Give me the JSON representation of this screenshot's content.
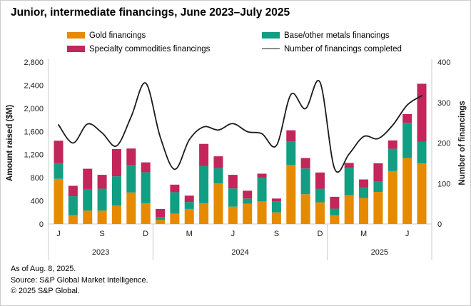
{
  "title": "Junior, intermediate financings, June 2023–July 2025",
  "colors": {
    "gold": "#E68A00",
    "base": "#119E82",
    "specialty": "#C2265A",
    "line": "#1A1A1A",
    "axis_gray": "#CCCCCC"
  },
  "legend": [
    {
      "label": "Gold financings",
      "swatch": "gold"
    },
    {
      "label": "Specialty commodities financings",
      "swatch": "specialty"
    },
    {
      "label": "Base/other metals financings",
      "swatch": "base"
    },
    {
      "label": "Number of financings completed",
      "swatch": "line"
    }
  ],
  "footnotes": {
    "as_of": "As of Aug. 8, 2025.",
    "source": "Source: S&P Global Market Intelligence.",
    "copyright": "© 2025 S&P Global."
  },
  "chart_data": {
    "type": "stacked-bar+line",
    "categories": [
      "Jun 2023",
      "Jul 2023",
      "Aug 2023",
      "Sep 2023",
      "Oct 2023",
      "Nov 2023",
      "Dec 2023",
      "Jan 2024",
      "Feb 2024",
      "Mar 2024",
      "Apr 2024",
      "May 2024",
      "Jun 2024",
      "Jul 2024",
      "Aug 2024",
      "Sep 2024",
      "Oct 2024",
      "Nov 2024",
      "Dec 2024",
      "Jan 2025",
      "Feb 2025",
      "Mar 2025",
      "Apr 2025",
      "May 2025",
      "Jun 2025",
      "Jul 2025"
    ],
    "series": [
      {
        "name": "Gold financings",
        "type": "bar",
        "axis": "left",
        "color_key": "gold",
        "values": [
          780,
          150,
          230,
          230,
          320,
          545,
          360,
          70,
          180,
          260,
          360,
          700,
          300,
          350,
          390,
          200,
          1020,
          515,
          375,
          150,
          500,
          450,
          555,
          915,
          1140,
          1050
        ]
      },
      {
        "name": "Base/other metals financings",
        "type": "bar",
        "axis": "left",
        "color_key": "base",
        "values": [
          270,
          330,
          375,
          380,
          505,
          470,
          535,
          50,
          370,
          120,
          645,
          265,
          315,
          90,
          410,
          190,
          410,
          445,
          235,
          115,
          470,
          185,
          185,
          385,
          610,
          370
        ]
      },
      {
        "name": "Specialty commodities financings",
        "type": "bar",
        "axis": "left",
        "color_key": "specialty",
        "values": [
          390,
          180,
          350,
          240,
          470,
          290,
          170,
          140,
          130,
          110,
          380,
          205,
          235,
          135,
          70,
          50,
          190,
          180,
          280,
          205,
          85,
          135,
          310,
          145,
          150,
          1005
        ]
      },
      {
        "name": "Number of financings completed",
        "type": "line",
        "axis": "right",
        "color_key": "line",
        "values": [
          245,
          200,
          247,
          225,
          193,
          265,
          348,
          215,
          135,
          208,
          240,
          232,
          248,
          228,
          223,
          194,
          320,
          285,
          350,
          137,
          173,
          216,
          211,
          244,
          294,
          317
        ]
      }
    ],
    "left_axis": {
      "label": "Amount raised ($M)",
      "min": 0,
      "max": 2800,
      "step": 400,
      "tick_labels": [
        "0",
        "400",
        "800",
        "1,200",
        "1,600",
        "2,000",
        "2,400",
        "2,800"
      ]
    },
    "right_axis": {
      "label": "Number of financings",
      "min": 0,
      "max": 400,
      "step": 100,
      "tick_labels": [
        "0",
        "100",
        "200",
        "300",
        "400"
      ]
    },
    "x_axis": {
      "month_ticks": [
        {
          "index": 0,
          "label": "J"
        },
        {
          "index": 3,
          "label": "S"
        },
        {
          "index": 6,
          "label": "D"
        },
        {
          "index": 9,
          "label": "M"
        },
        {
          "index": 12,
          "label": "J"
        },
        {
          "index": 15,
          "label": "S"
        },
        {
          "index": 18,
          "label": "D"
        },
        {
          "index": 21,
          "label": "M"
        },
        {
          "index": 24,
          "label": "J"
        }
      ],
      "year_groups": [
        {
          "label": "2023",
          "from": 0,
          "to": 6
        },
        {
          "label": "2024",
          "from": 7,
          "to": 18
        },
        {
          "label": "2025",
          "from": 19,
          "to": 25
        }
      ]
    },
    "grid": false,
    "legend_position": "top",
    "bar_stack_order_bottom_to_top": [
      "Gold financings",
      "Base/other metals financings",
      "Specialty commodities financings"
    ]
  }
}
